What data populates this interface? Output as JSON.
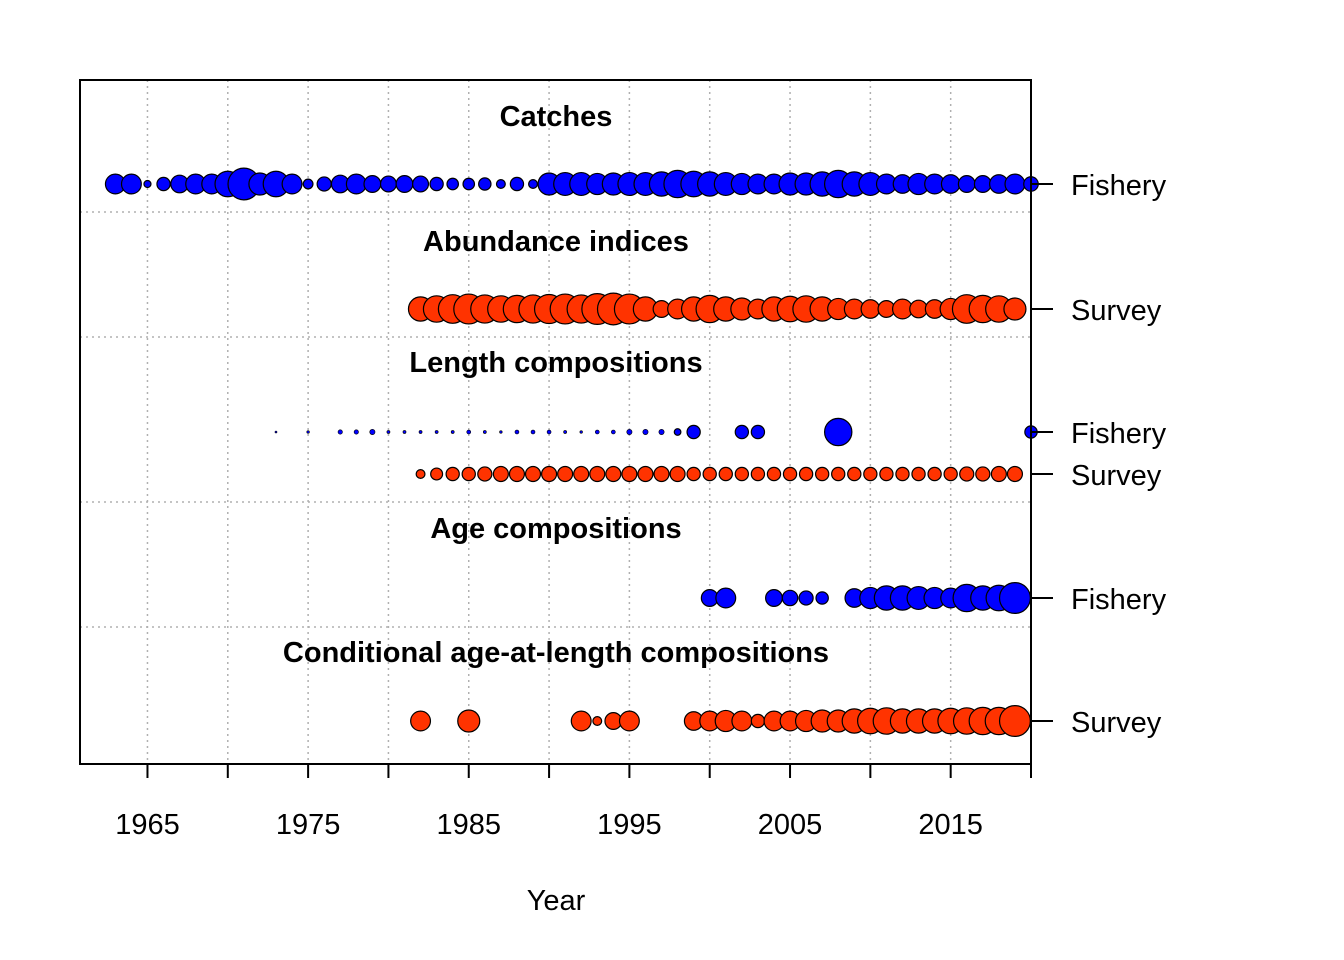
{
  "chart_data": {
    "type": "scatter",
    "subtype": "data-availability bubble plot",
    "xlabel": "Year",
    "xlim": [
      1960.8,
      2020.0
    ],
    "x_ticks": [
      1965,
      1975,
      1985,
      1995,
      2005,
      2015
    ],
    "x_minor_ticks": [
      1965,
      1970,
      1975,
      1980,
      1985,
      1990,
      1995,
      2000,
      2005,
      2010,
      2015,
      2020
    ],
    "grid": true,
    "colors": {
      "fishery": "#0000ff",
      "survey": "#ff3300",
      "outline": "#000000"
    },
    "panels": [
      {
        "title": "Catches",
        "series": [
          {
            "name": "Fishery",
            "fleet": "fishery",
            "points": [
              [
                1963,
                0.45
              ],
              [
                1964,
                0.45
              ],
              [
                1965,
                0.16
              ],
              [
                1966,
                0.3
              ],
              [
                1967,
                0.4
              ],
              [
                1968,
                0.45
              ],
              [
                1969,
                0.45
              ],
              [
                1970,
                0.58
              ],
              [
                1971,
                0.72
              ],
              [
                1972,
                0.5
              ],
              [
                1973,
                0.58
              ],
              [
                1974,
                0.45
              ],
              [
                1975,
                0.22
              ],
              [
                1976,
                0.32
              ],
              [
                1977,
                0.4
              ],
              [
                1978,
                0.45
              ],
              [
                1979,
                0.38
              ],
              [
                1980,
                0.36
              ],
              [
                1981,
                0.38
              ],
              [
                1982,
                0.36
              ],
              [
                1983,
                0.3
              ],
              [
                1984,
                0.26
              ],
              [
                1985,
                0.26
              ],
              [
                1986,
                0.28
              ],
              [
                1987,
                0.2
              ],
              [
                1988,
                0.3
              ],
              [
                1989,
                0.2
              ],
              [
                1990,
                0.5
              ],
              [
                1991,
                0.52
              ],
              [
                1992,
                0.52
              ],
              [
                1993,
                0.48
              ],
              [
                1994,
                0.5
              ],
              [
                1995,
                0.52
              ],
              [
                1996,
                0.52
              ],
              [
                1997,
                0.55
              ],
              [
                1998,
                0.62
              ],
              [
                1999,
                0.58
              ],
              [
                2000,
                0.55
              ],
              [
                2001,
                0.52
              ],
              [
                2002,
                0.48
              ],
              [
                2003,
                0.45
              ],
              [
                2004,
                0.45
              ],
              [
                2005,
                0.5
              ],
              [
                2006,
                0.5
              ],
              [
                2007,
                0.55
              ],
              [
                2008,
                0.62
              ],
              [
                2009,
                0.55
              ],
              [
                2010,
                0.52
              ],
              [
                2011,
                0.45
              ],
              [
                2012,
                0.42
              ],
              [
                2013,
                0.48
              ],
              [
                2014,
                0.45
              ],
              [
                2015,
                0.42
              ],
              [
                2016,
                0.38
              ],
              [
                2017,
                0.38
              ],
              [
                2018,
                0.42
              ],
              [
                2019,
                0.45
              ],
              [
                2020,
                0.33
              ]
            ]
          }
        ]
      },
      {
        "title": "Abundance indices",
        "series": [
          {
            "name": "Survey",
            "fleet": "survey",
            "points": [
              [
                1982,
                0.55
              ],
              [
                1983,
                0.6
              ],
              [
                1984,
                0.65
              ],
              [
                1985,
                0.68
              ],
              [
                1986,
                0.64
              ],
              [
                1987,
                0.6
              ],
              [
                1988,
                0.62
              ],
              [
                1989,
                0.64
              ],
              [
                1990,
                0.66
              ],
              [
                1991,
                0.68
              ],
              [
                1992,
                0.64
              ],
              [
                1993,
                0.7
              ],
              [
                1994,
                0.72
              ],
              [
                1995,
                0.68
              ],
              [
                1996,
                0.55
              ],
              [
                1997,
                0.38
              ],
              [
                1998,
                0.45
              ],
              [
                1999,
                0.55
              ],
              [
                2000,
                0.62
              ],
              [
                2001,
                0.55
              ],
              [
                2002,
                0.5
              ],
              [
                2003,
                0.45
              ],
              [
                2004,
                0.55
              ],
              [
                2005,
                0.58
              ],
              [
                2006,
                0.6
              ],
              [
                2007,
                0.55
              ],
              [
                2008,
                0.48
              ],
              [
                2009,
                0.45
              ],
              [
                2010,
                0.42
              ],
              [
                2011,
                0.38
              ],
              [
                2012,
                0.45
              ],
              [
                2013,
                0.4
              ],
              [
                2014,
                0.42
              ],
              [
                2015,
                0.48
              ],
              [
                2016,
                0.65
              ],
              [
                2017,
                0.62
              ],
              [
                2018,
                0.6
              ],
              [
                2019,
                0.5
              ]
            ]
          }
        ]
      },
      {
        "title": "Length compositions",
        "series": [
          {
            "name": "Fishery",
            "fleet": "fishery",
            "points": [
              [
                1973,
                0.04
              ],
              [
                1975,
                0.06
              ],
              [
                1977,
                0.1
              ],
              [
                1978,
                0.1
              ],
              [
                1979,
                0.12
              ],
              [
                1980,
                0.07
              ],
              [
                1981,
                0.07
              ],
              [
                1982,
                0.07
              ],
              [
                1983,
                0.07
              ],
              [
                1984,
                0.07
              ],
              [
                1985,
                0.09
              ],
              [
                1986,
                0.07
              ],
              [
                1987,
                0.06
              ],
              [
                1988,
                0.09
              ],
              [
                1989,
                0.09
              ],
              [
                1990,
                0.09
              ],
              [
                1991,
                0.07
              ],
              [
                1992,
                0.06
              ],
              [
                1993,
                0.09
              ],
              [
                1994,
                0.09
              ],
              [
                1995,
                0.12
              ],
              [
                1996,
                0.12
              ],
              [
                1997,
                0.12
              ],
              [
                1998,
                0.15
              ],
              [
                1999,
                0.3
              ],
              [
                2002,
                0.3
              ],
              [
                2003,
                0.3
              ],
              [
                2008,
                0.62
              ],
              [
                2020,
                0.28
              ]
            ]
          },
          {
            "name": "Survey",
            "fleet": "survey",
            "points": [
              [
                1982,
                0.2
              ],
              [
                1983,
                0.27
              ],
              [
                1984,
                0.3
              ],
              [
                1985,
                0.3
              ],
              [
                1986,
                0.32
              ],
              [
                1987,
                0.34
              ],
              [
                1988,
                0.34
              ],
              [
                1989,
                0.34
              ],
              [
                1990,
                0.34
              ],
              [
                1991,
                0.34
              ],
              [
                1992,
                0.34
              ],
              [
                1993,
                0.34
              ],
              [
                1994,
                0.34
              ],
              [
                1995,
                0.34
              ],
              [
                1996,
                0.34
              ],
              [
                1997,
                0.34
              ],
              [
                1998,
                0.34
              ],
              [
                1999,
                0.3
              ],
              [
                2000,
                0.3
              ],
              [
                2001,
                0.3
              ],
              [
                2002,
                0.3
              ],
              [
                2003,
                0.3
              ],
              [
                2004,
                0.3
              ],
              [
                2005,
                0.3
              ],
              [
                2006,
                0.3
              ],
              [
                2007,
                0.3
              ],
              [
                2008,
                0.3
              ],
              [
                2009,
                0.3
              ],
              [
                2010,
                0.3
              ],
              [
                2011,
                0.3
              ],
              [
                2012,
                0.3
              ],
              [
                2013,
                0.3
              ],
              [
                2014,
                0.3
              ],
              [
                2015,
                0.3
              ],
              [
                2016,
                0.32
              ],
              [
                2017,
                0.32
              ],
              [
                2018,
                0.34
              ],
              [
                2019,
                0.34
              ]
            ]
          }
        ]
      },
      {
        "title": "Age compositions",
        "series": [
          {
            "name": "Fishery",
            "fleet": "fishery",
            "points": [
              [
                2000,
                0.38
              ],
              [
                2001,
                0.45
              ],
              [
                2004,
                0.38
              ],
              [
                2005,
                0.35
              ],
              [
                2006,
                0.32
              ],
              [
                2007,
                0.28
              ],
              [
                2009,
                0.42
              ],
              [
                2010,
                0.48
              ],
              [
                2011,
                0.55
              ],
              [
                2012,
                0.55
              ],
              [
                2013,
                0.52
              ],
              [
                2014,
                0.48
              ],
              [
                2015,
                0.45
              ],
              [
                2016,
                0.62
              ],
              [
                2017,
                0.55
              ],
              [
                2018,
                0.58
              ],
              [
                2019,
                0.7
              ]
            ]
          }
        ]
      },
      {
        "title": "Conditional age-at-length compositions",
        "series": [
          {
            "name": "Survey",
            "fleet": "survey",
            "points": [
              [
                1982,
                0.45
              ],
              [
                1985,
                0.5
              ],
              [
                1992,
                0.45
              ],
              [
                1993,
                0.2
              ],
              [
                1994,
                0.38
              ],
              [
                1995,
                0.45
              ],
              [
                1999,
                0.42
              ],
              [
                2000,
                0.45
              ],
              [
                2001,
                0.48
              ],
              [
                2002,
                0.45
              ],
              [
                2003,
                0.3
              ],
              [
                2004,
                0.45
              ],
              [
                2005,
                0.45
              ],
              [
                2006,
                0.48
              ],
              [
                2007,
                0.5
              ],
              [
                2008,
                0.5
              ],
              [
                2009,
                0.55
              ],
              [
                2010,
                0.58
              ],
              [
                2011,
                0.6
              ],
              [
                2012,
                0.55
              ],
              [
                2013,
                0.55
              ],
              [
                2014,
                0.55
              ],
              [
                2015,
                0.58
              ],
              [
                2016,
                0.6
              ],
              [
                2017,
                0.62
              ],
              [
                2018,
                0.62
              ],
              [
                2019,
                0.7
              ]
            ]
          }
        ]
      }
    ]
  }
}
